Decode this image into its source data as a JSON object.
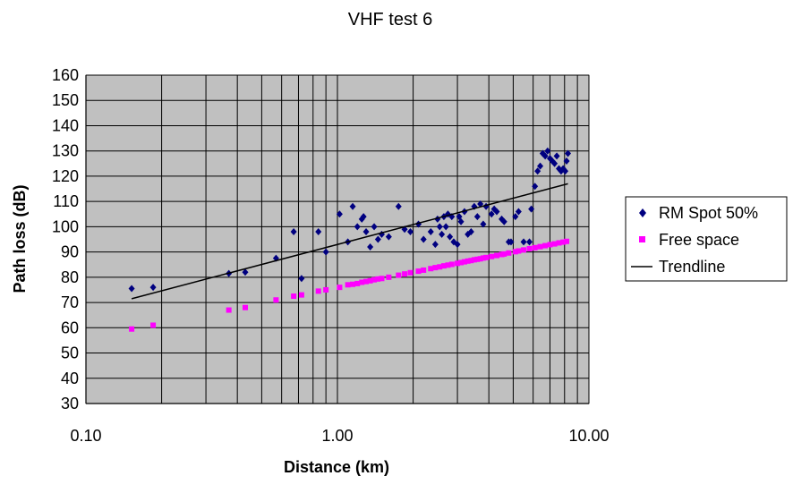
{
  "chart_data": {
    "type": "scatter",
    "title": "VHF test 6",
    "xlabel": "Distance (km)",
    "ylabel": "Path loss (dB)",
    "xscale": "log",
    "xlim": [
      0.1,
      10
    ],
    "ylim": [
      30,
      160
    ],
    "xticks": [
      "0.10",
      "1.00",
      "10.00"
    ],
    "yticks": [
      "30",
      "40",
      "50",
      "60",
      "70",
      "80",
      "90",
      "100",
      "110",
      "120",
      "130",
      "140",
      "150",
      "160"
    ],
    "grid": "on",
    "plot_background": "#c0c0c0",
    "legend_position": "right",
    "series": [
      {
        "name": "RM Spot 50%",
        "marker": "diamond",
        "color": "#000080",
        "points": [
          [
            0.152,
            75.5
          ],
          [
            0.185,
            76.0
          ],
          [
            0.37,
            81.5
          ],
          [
            0.43,
            82.0
          ],
          [
            0.57,
            87.5
          ],
          [
            0.67,
            98.0
          ],
          [
            0.72,
            79.5
          ],
          [
            0.84,
            98.0
          ],
          [
            0.9,
            90.0
          ],
          [
            1.02,
            105.0
          ],
          [
            1.1,
            94.0
          ],
          [
            1.15,
            108.0
          ],
          [
            1.2,
            100.0
          ],
          [
            1.25,
            103.0
          ],
          [
            1.27,
            104.0
          ],
          [
            1.3,
            98.0
          ],
          [
            1.35,
            92.0
          ],
          [
            1.4,
            100.0
          ],
          [
            1.45,
            95.0
          ],
          [
            1.5,
            97.0
          ],
          [
            1.6,
            96.0
          ],
          [
            1.75,
            108.0
          ],
          [
            1.85,
            99.0
          ],
          [
            1.95,
            98.0
          ],
          [
            2.1,
            101.0
          ],
          [
            2.2,
            95.0
          ],
          [
            2.35,
            98.0
          ],
          [
            2.45,
            93.0
          ],
          [
            2.5,
            103.0
          ],
          [
            2.55,
            100.0
          ],
          [
            2.6,
            97.0
          ],
          [
            2.65,
            104.0
          ],
          [
            2.7,
            100.0
          ],
          [
            2.75,
            105.0
          ],
          [
            2.8,
            96.0
          ],
          [
            2.85,
            104.0
          ],
          [
            2.9,
            94.0
          ],
          [
            3.0,
            93.0
          ],
          [
            3.05,
            104.0
          ],
          [
            3.1,
            102.0
          ],
          [
            3.2,
            106.0
          ],
          [
            3.3,
            97.0
          ],
          [
            3.4,
            98.0
          ],
          [
            3.5,
            108.0
          ],
          [
            3.6,
            104.0
          ],
          [
            3.7,
            109.0
          ],
          [
            3.8,
            101.0
          ],
          [
            3.9,
            108.0
          ],
          [
            4.1,
            105.0
          ],
          [
            4.2,
            107.0
          ],
          [
            4.3,
            106.0
          ],
          [
            4.5,
            103.0
          ],
          [
            4.6,
            102.0
          ],
          [
            4.8,
            94.0
          ],
          [
            4.9,
            94.0
          ],
          [
            5.1,
            104.0
          ],
          [
            5.25,
            106.0
          ],
          [
            5.5,
            94.0
          ],
          [
            5.8,
            94.0
          ],
          [
            5.9,
            107.0
          ],
          [
            6.1,
            116.0
          ],
          [
            6.25,
            122.0
          ],
          [
            6.4,
            124.0
          ],
          [
            6.55,
            129.0
          ],
          [
            6.7,
            128.0
          ],
          [
            6.85,
            130.0
          ],
          [
            7.0,
            127.0
          ],
          [
            7.15,
            126.0
          ],
          [
            7.3,
            125.0
          ],
          [
            7.45,
            128.0
          ],
          [
            7.6,
            123.0
          ],
          [
            7.75,
            122.0
          ],
          [
            7.9,
            123.0
          ],
          [
            8.05,
            122.0
          ],
          [
            8.15,
            126.0
          ],
          [
            8.25,
            129.0
          ]
        ]
      },
      {
        "name": "Free space",
        "marker": "square",
        "color": "#ff00ff",
        "points": [
          [
            0.152,
            59.5
          ],
          [
            0.185,
            61.0
          ],
          [
            0.37,
            67.0
          ],
          [
            0.43,
            68.0
          ],
          [
            0.57,
            71.0
          ],
          [
            0.67,
            72.5
          ],
          [
            0.72,
            73.0
          ],
          [
            0.84,
            74.5
          ],
          [
            0.9,
            75.0
          ],
          [
            1.02,
            76.0
          ],
          [
            1.1,
            77.0
          ],
          [
            1.15,
            77.2
          ],
          [
            1.2,
            77.5
          ],
          [
            1.25,
            78.0
          ],
          [
            1.3,
            78.3
          ],
          [
            1.35,
            78.6
          ],
          [
            1.4,
            79.0
          ],
          [
            1.45,
            79.3
          ],
          [
            1.5,
            79.5
          ],
          [
            1.6,
            80.0
          ],
          [
            1.75,
            80.8
          ],
          [
            1.85,
            81.3
          ],
          [
            1.95,
            81.8
          ],
          [
            2.1,
            82.4
          ],
          [
            2.2,
            82.8
          ],
          [
            2.35,
            83.4
          ],
          [
            2.45,
            83.8
          ],
          [
            2.55,
            84.1
          ],
          [
            2.65,
            84.5
          ],
          [
            2.75,
            84.8
          ],
          [
            2.85,
            85.1
          ],
          [
            3.0,
            85.5
          ],
          [
            3.1,
            85.8
          ],
          [
            3.2,
            86.1
          ],
          [
            3.3,
            86.4
          ],
          [
            3.4,
            86.6
          ],
          [
            3.5,
            86.9
          ],
          [
            3.6,
            87.1
          ],
          [
            3.7,
            87.3
          ],
          [
            3.8,
            87.6
          ],
          [
            3.9,
            87.8
          ],
          [
            4.1,
            88.2
          ],
          [
            4.3,
            88.6
          ],
          [
            4.5,
            89.0
          ],
          [
            4.6,
            89.2
          ],
          [
            4.8,
            89.6
          ],
          [
            5.1,
            90.1
          ],
          [
            5.25,
            90.4
          ],
          [
            5.5,
            90.8
          ],
          [
            5.8,
            91.3
          ],
          [
            6.1,
            91.7
          ],
          [
            6.4,
            92.1
          ],
          [
            6.7,
            92.5
          ],
          [
            7.0,
            92.9
          ],
          [
            7.3,
            93.2
          ],
          [
            7.6,
            93.6
          ],
          [
            7.9,
            93.9
          ],
          [
            8.15,
            94.2
          ]
        ]
      },
      {
        "name": "Trendline",
        "type": "line",
        "color": "#000000",
        "points": [
          [
            0.152,
            71.5
          ],
          [
            8.25,
            117.0
          ]
        ]
      }
    ]
  }
}
